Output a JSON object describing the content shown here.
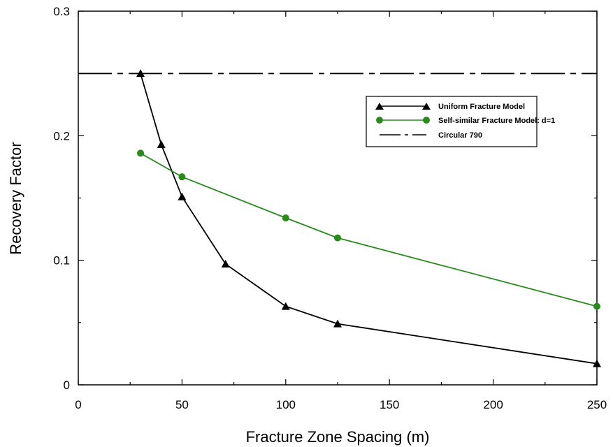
{
  "chart_data": {
    "type": "line",
    "title": "",
    "xlabel": "Fracture Zone Spacing (m)",
    "ylabel": "Recovery Factor",
    "xlim": [
      0,
      250
    ],
    "ylim": [
      0,
      0.3
    ],
    "xticks": [
      "0",
      "50",
      "100",
      "150",
      "200",
      "250"
    ],
    "yticks": [
      "0",
      "0.1",
      "0.2",
      "0.3"
    ],
    "grid": false,
    "legend_position": "top-right",
    "series": [
      {
        "name": "Uniform Fracture Model",
        "color": "#000000",
        "marker": "triangle",
        "line_style": "solid",
        "x": [
          30,
          40,
          50,
          71,
          100,
          125,
          250
        ],
        "y": [
          0.25,
          0.193,
          0.151,
          0.097,
          0.063,
          0.049,
          0.017
        ]
      },
      {
        "name": "Self-similar Fracture Model: d=1",
        "color": "#2a8a1e",
        "marker": "circle",
        "line_style": "solid",
        "x": [
          30,
          50,
          100,
          125,
          250
        ],
        "y": [
          0.186,
          0.167,
          0.134,
          0.118,
          0.063
        ]
      },
      {
        "name": "Circular 790",
        "color": "#000000",
        "marker": "none",
        "line_style": "dashdot",
        "x": [
          0,
          250
        ],
        "y": [
          0.25,
          0.25
        ]
      }
    ]
  }
}
